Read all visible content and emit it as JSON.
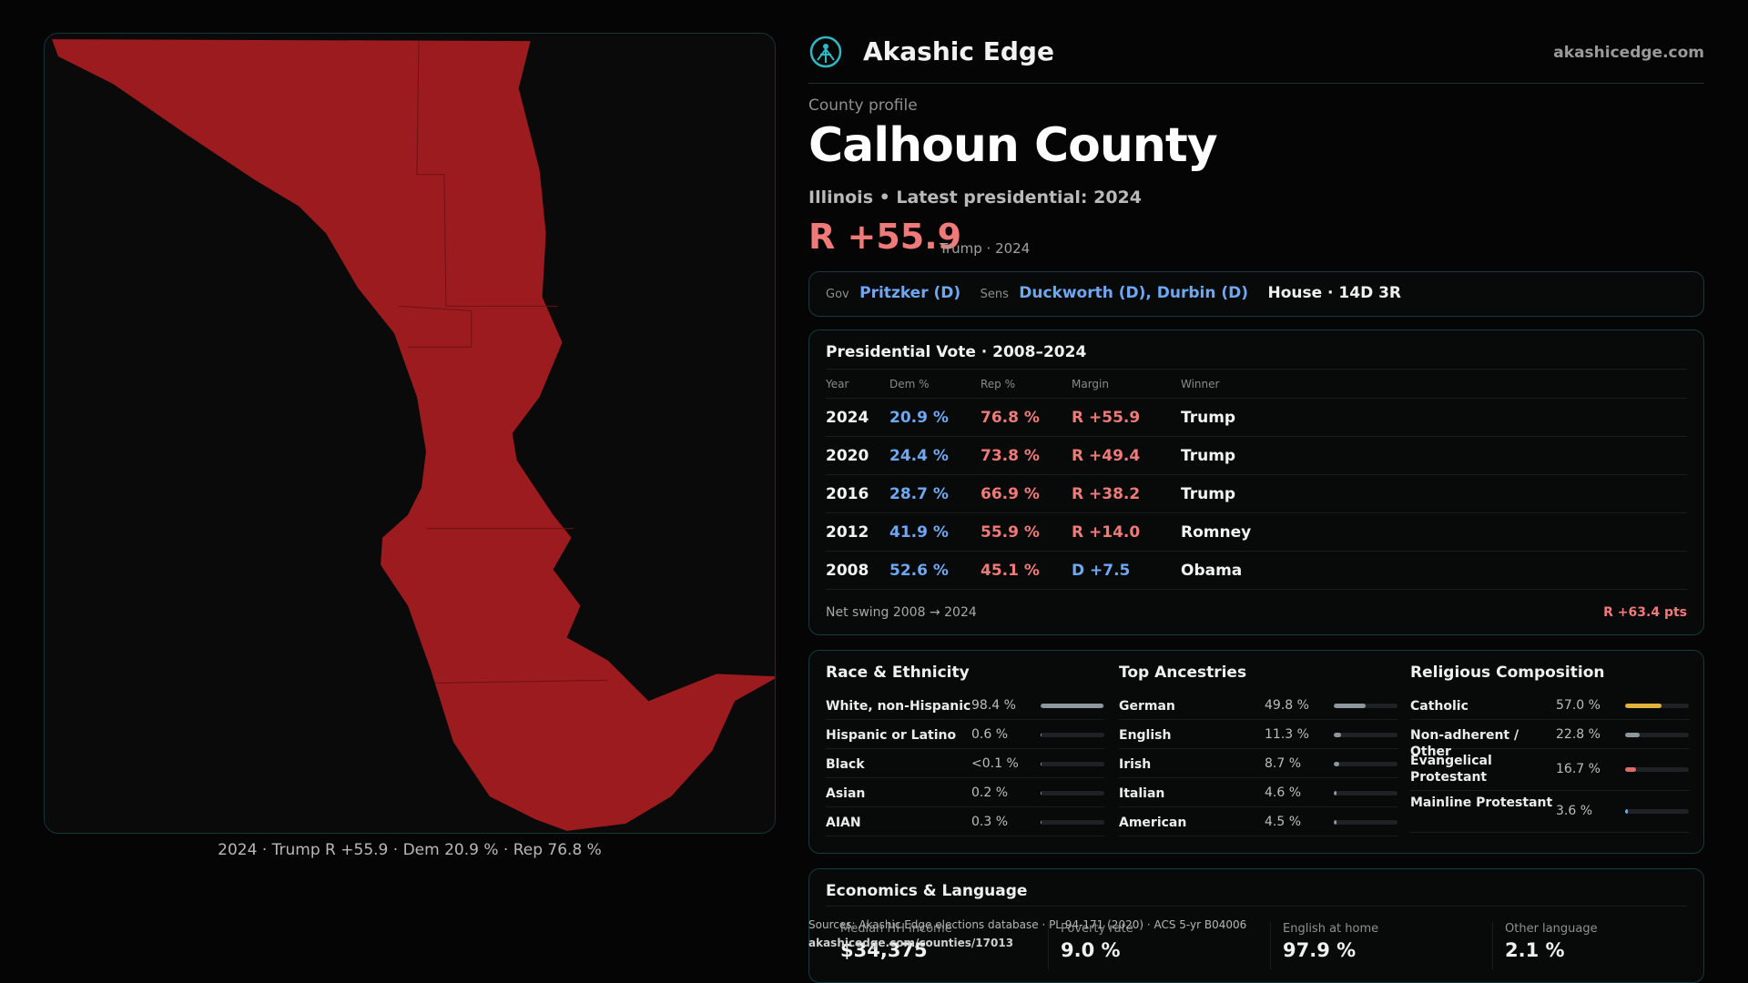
{
  "colors": {
    "rep": "#f07a7a",
    "dem": "#6fa8f2",
    "county_fill": "#9b1b1e",
    "accent": "#2fb7c2"
  },
  "map": {
    "caption": "2024 · Trump R +55.9 · Dem 20.9 % · Rep 76.8 %"
  },
  "header": {
    "brand": "Akashic Edge",
    "site": "akashicedge.com",
    "logo_icon": "compass-logo-icon"
  },
  "profile": {
    "eyebrow": "County profile",
    "title": "Calhoun County",
    "subtitle": "Illinois • Latest presidential: 2024",
    "margin": "R +55.9",
    "margin_note": "Trump · 2024"
  },
  "officials": {
    "gov_label": "Gov",
    "gov": "Pritzker (D)",
    "sens_label": "Sens",
    "sens": "Duckworth (D), Durbin (D)",
    "house": "House · 14D 3R"
  },
  "votes": {
    "title": "Presidential Vote · 2008–2024",
    "headers": [
      "Year",
      "Dem %",
      "Rep %",
      "Margin",
      "Winner"
    ],
    "rows": [
      {
        "year": "2024",
        "dem": "20.9 %",
        "rep": "76.8 %",
        "margin": "R +55.9",
        "winner": "Trump"
      },
      {
        "year": "2020",
        "dem": "24.4 %",
        "rep": "73.8 %",
        "margin": "R +49.4",
        "winner": "Trump"
      },
      {
        "year": "2016",
        "dem": "28.7 %",
        "rep": "66.9 %",
        "margin": "R +38.2",
        "winner": "Trump"
      },
      {
        "year": "2012",
        "dem": "41.9 %",
        "rep": "55.9 %",
        "margin": "R +14.0",
        "winner": "Romney"
      },
      {
        "year": "2008",
        "dem": "52.6 %",
        "rep": "45.1 %",
        "margin": "D +7.5",
        "winner": "Obama"
      }
    ],
    "swing_label": "Net swing 2008 → 2024",
    "swing_value": "R +63.4 pts"
  },
  "race": {
    "title": "Race & Ethnicity",
    "bar_color": "#8e969e",
    "items": [
      {
        "name": "White, non-Hispanic",
        "pct": "98.4 %",
        "share": 98.4
      },
      {
        "name": "Hispanic or Latino",
        "pct": "0.6 %",
        "share": 0.6
      },
      {
        "name": "Black",
        "pct": "<0.1 %",
        "share": 0.05
      },
      {
        "name": "Asian",
        "pct": "0.2 %",
        "share": 0.2
      },
      {
        "name": "AIAN",
        "pct": "0.3 %",
        "share": 0.3
      }
    ]
  },
  "ancestry": {
    "title": "Top Ancestries",
    "bar_color": "#8e969e",
    "items": [
      {
        "name": "German",
        "pct": "49.8 %",
        "share": 49.8
      },
      {
        "name": "English",
        "pct": "11.3 %",
        "share": 11.3
      },
      {
        "name": "Irish",
        "pct": "8.7 %",
        "share": 8.7
      },
      {
        "name": "Italian",
        "pct": "4.6 %",
        "share": 4.6
      },
      {
        "name": "American",
        "pct": "4.5 %",
        "share": 4.5
      }
    ]
  },
  "religion": {
    "title": "Religious Composition",
    "items": [
      {
        "name": "Catholic",
        "pct": "57.0 %",
        "share": 57.0,
        "color": "#e2b33c"
      },
      {
        "name": "Non-adherent / Other",
        "pct": "22.8 %",
        "share": 22.8,
        "color": "#8e969e"
      },
      {
        "name": "Evangelical Protestant",
        "pct": "16.7 %",
        "share": 16.7,
        "color": "#e06a6a"
      },
      {
        "name": "Mainline Protestant",
        "pct": "3.6 %",
        "share": 3.6,
        "color": "#6fa8f2"
      }
    ]
  },
  "economics": {
    "title": "Economics & Language",
    "stats": [
      {
        "label": "Median HH income",
        "value": "$34,375"
      },
      {
        "label": "Poverty rate",
        "value": "9.0 %"
      },
      {
        "label": "English at home",
        "value": "97.9 %"
      },
      {
        "label": "Other language",
        "value": "2.1 %"
      }
    ]
  },
  "sources": {
    "text": "Sources: Akashic Edge elections database · PL 94-171 (2020) · ACS 5-yr B04006",
    "url": "akashicedge.com/counties/17013"
  }
}
